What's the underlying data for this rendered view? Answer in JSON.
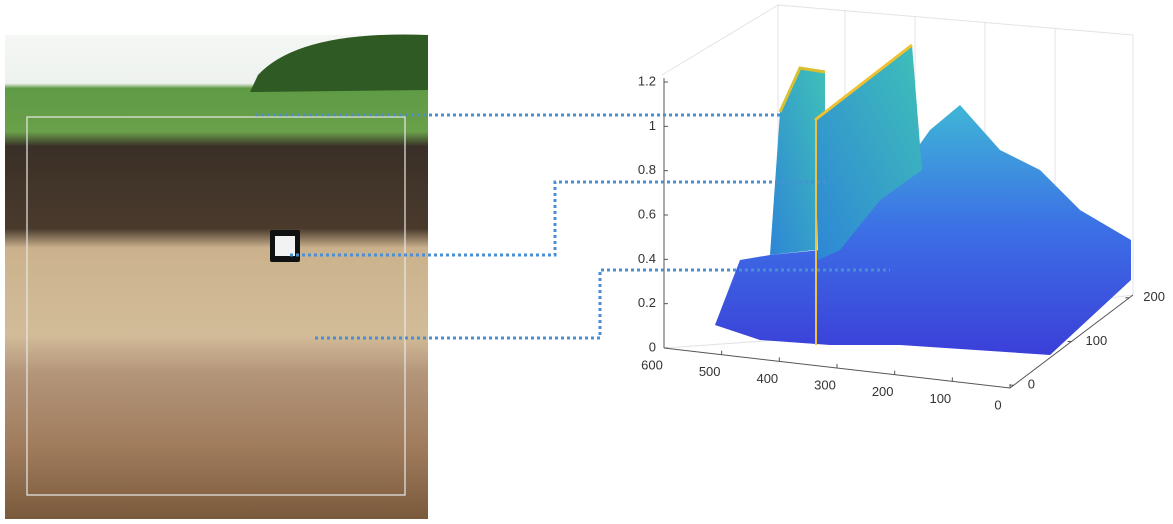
{
  "plot": {
    "zticks": [
      0,
      0.2,
      0.4,
      0.6,
      0.8,
      1,
      1.2
    ],
    "xticks": [
      600,
      500,
      400,
      300,
      200,
      100,
      0
    ],
    "yticks": [
      0,
      100,
      200
    ]
  }
}
